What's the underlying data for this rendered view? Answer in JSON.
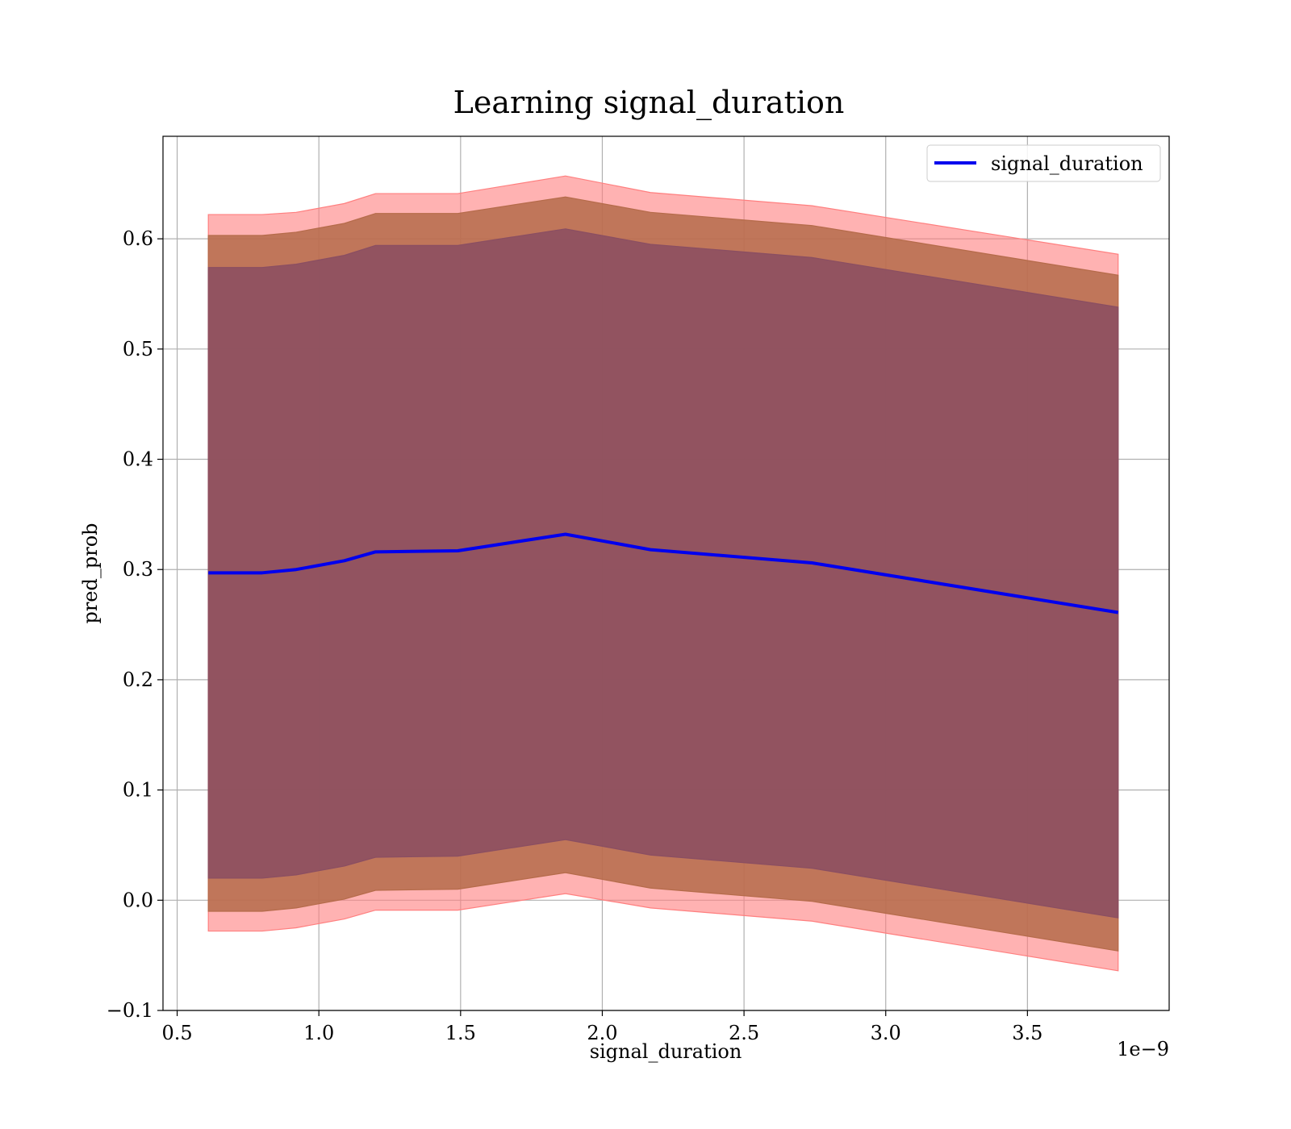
{
  "chart_data": {
    "type": "line",
    "title": "Learning signal_duration",
    "xlabel": "signal_duration",
    "ylabel": "pred_prob",
    "x_offset_label": "1e−9",
    "xlim": [
      0.45,
      4.0
    ],
    "ylim": [
      -0.1,
      0.693
    ],
    "xticks": [
      0.5,
      1.0,
      1.5,
      2.0,
      2.5,
      3.0,
      3.5
    ],
    "xtick_labels": [
      "0.5",
      "1.0",
      "1.5",
      "2.0",
      "2.5",
      "3.0",
      "3.5"
    ],
    "yticks": [
      -0.1,
      0.0,
      0.1,
      0.2,
      0.3,
      0.4,
      0.5,
      0.6
    ],
    "ytick_labels": [
      "−0.1",
      "0.0",
      "0.1",
      "0.2",
      "0.3",
      "0.4",
      "0.5",
      "0.6"
    ],
    "grid": true,
    "legend_position": "top-right",
    "x": [
      0.61,
      0.8,
      0.92,
      1.09,
      1.2,
      1.49,
      1.87,
      2.17,
      2.74,
      3.82
    ],
    "series": [
      {
        "name": "signal_duration",
        "color": "#0000ee",
        "values": [
          0.297,
          0.297,
          0.3,
          0.308,
          0.316,
          0.317,
          0.332,
          0.318,
          0.306,
          0.261
        ]
      }
    ],
    "bands": [
      {
        "color": "#ff7f7f",
        "upper": [
          0.622,
          0.622,
          0.624,
          0.632,
          0.641,
          0.641,
          0.657,
          0.642,
          0.63,
          0.586
        ],
        "lower": [
          -0.028,
          -0.028,
          -0.025,
          -0.017,
          -0.009,
          -0.009,
          0.006,
          -0.007,
          -0.019,
          -0.064
        ]
      },
      {
        "color": "#b56b4a",
        "upper": [
          0.603,
          0.603,
          0.606,
          0.614,
          0.623,
          0.623,
          0.638,
          0.624,
          0.612,
          0.567
        ],
        "lower": [
          -0.01,
          -0.01,
          -0.007,
          0.001,
          0.009,
          0.01,
          0.025,
          0.011,
          -0.001,
          -0.046
        ]
      },
      {
        "color": "#8a4e62",
        "upper": [
          0.574,
          0.574,
          0.577,
          0.585,
          0.594,
          0.594,
          0.609,
          0.595,
          0.583,
          0.538
        ],
        "lower": [
          0.02,
          0.02,
          0.023,
          0.031,
          0.039,
          0.04,
          0.055,
          0.041,
          0.029,
          -0.016
        ]
      }
    ]
  }
}
